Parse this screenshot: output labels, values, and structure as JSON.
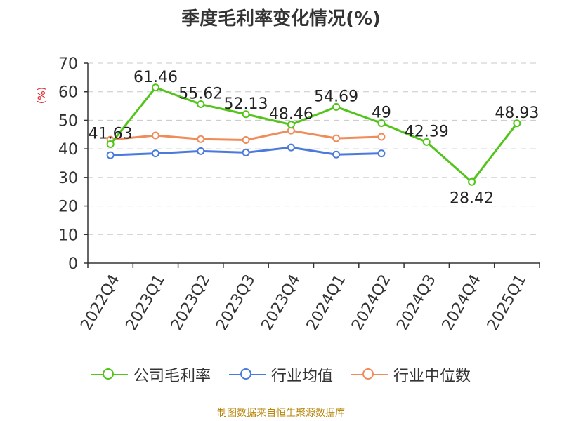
{
  "chart_data": {
    "type": "line",
    "title": "季度毛利率变化情况(%)",
    "ylabel": "(%)",
    "ylim": [
      0,
      70
    ],
    "yticks": [
      0,
      10,
      20,
      30,
      40,
      50,
      60,
      70
    ],
    "grid": true,
    "legend_position": "bottom",
    "categories": [
      "2022Q4",
      "2023Q1",
      "2023Q2",
      "2023Q3",
      "2023Q4",
      "2024Q1",
      "2024Q2",
      "2024Q3",
      "2024Q4",
      "2025Q1"
    ],
    "series": [
      {
        "name": "公司毛利率",
        "color": "#52c41a",
        "values": [
          41.63,
          61.46,
          55.62,
          52.13,
          48.46,
          54.69,
          49,
          42.39,
          28.42,
          48.93
        ],
        "labels": [
          "41.63",
          "61.46",
          "55.62",
          "52.13",
          "48.46",
          "54.69",
          "49",
          "42.39",
          "28.42",
          "48.93"
        ]
      },
      {
        "name": "行业均值",
        "color": "#4a7bdc",
        "values": [
          37.8,
          38.4,
          39.2,
          38.7,
          40.5,
          38.0,
          38.4,
          null,
          null,
          null
        ]
      },
      {
        "name": "行业中位数",
        "color": "#f08c5a",
        "values": [
          43.2,
          44.7,
          43.4,
          43.1,
          46.4,
          43.7,
          44.2,
          null,
          null,
          null
        ]
      }
    ]
  },
  "source_text": "制图数据来自恒生聚源数据库"
}
